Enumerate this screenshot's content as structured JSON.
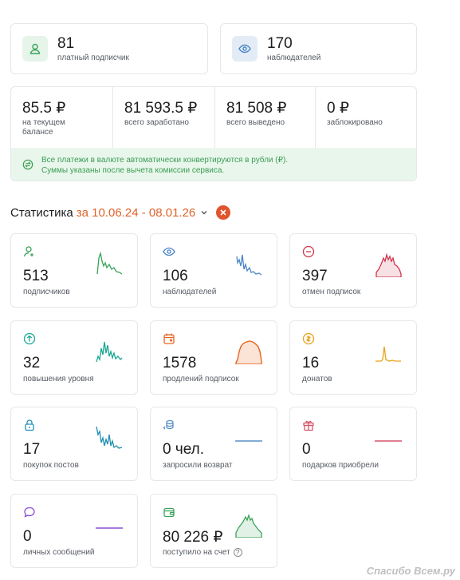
{
  "top": [
    {
      "value": "81",
      "label": "платный подписчик",
      "icon": "user-icon",
      "color": "#3aa35a",
      "bg": "#e6f4ea"
    },
    {
      "value": "170",
      "label": "наблюдателей",
      "icon": "eye-icon",
      "color": "#4a86c7",
      "bg": "#e3ecf6"
    }
  ],
  "balance": {
    "cells": [
      {
        "value": "85.5 ₽",
        "label": "на текущем балансе"
      },
      {
        "value": "81 593.5 ₽",
        "label": "всего заработано"
      },
      {
        "value": "81 508 ₽",
        "label": "всего выведено"
      },
      {
        "value": "0 ₽",
        "label": "заблокировано"
      }
    ],
    "note_line1": "Все платежи в валюте автоматически конвертируются в рубли (₽).",
    "note_line2": "Суммы указаны после вычета комиссии сервиса."
  },
  "stats": {
    "title": "Статистика",
    "range": "за 10.06.24 - 08.01.26"
  },
  "tiles": [
    {
      "value": "513",
      "label": "подписчиков",
      "icon": "user-plus-icon",
      "color": "#3aa35a",
      "spark": "peak-green"
    },
    {
      "value": "106",
      "label": "наблюдателей",
      "icon": "eye-icon",
      "color": "#4a86c7",
      "spark": "peak-blue"
    },
    {
      "value": "397",
      "label": "отмен подписок",
      "icon": "minus-circle-icon",
      "color": "#d1364c",
      "spark": "peak-red"
    },
    {
      "value": "32",
      "label": "повышения уровня",
      "icon": "arrow-up-circle-icon",
      "color": "#1aa892",
      "spark": "peak-teal"
    },
    {
      "value": "1578",
      "label": "продлений подписок",
      "icon": "calendar-wallet-icon",
      "color": "#e8641e",
      "spark": "hump-orange"
    },
    {
      "value": "16",
      "label": "донатов",
      "icon": "coin-icon",
      "color": "#e9a11c",
      "spark": "spike-yellow"
    },
    {
      "value": "17",
      "label": "покупок постов",
      "icon": "lock-icon",
      "color": "#1f8fb0",
      "spark": "peak-cyan"
    },
    {
      "value": "0 чел.",
      "label": "запросили возврат",
      "icon": "refund-icon",
      "color": "#5b8fc9",
      "spark": "flat-blue"
    },
    {
      "value": "0",
      "label": "подарков приобрели",
      "icon": "gift-icon",
      "color": "#d5556c",
      "spark": "flat-red"
    },
    {
      "value": "0",
      "label": "личных сообщений",
      "icon": "chat-icon",
      "color": "#8a4fd1",
      "spark": "flat-purple"
    },
    {
      "value": "80 226 ₽",
      "label": "поступило на счет",
      "icon": "wallet-icon",
      "color": "#3aa35a",
      "spark": "hump-green",
      "help": "?"
    }
  ],
  "watermark": "Спасибо Всем.ру"
}
